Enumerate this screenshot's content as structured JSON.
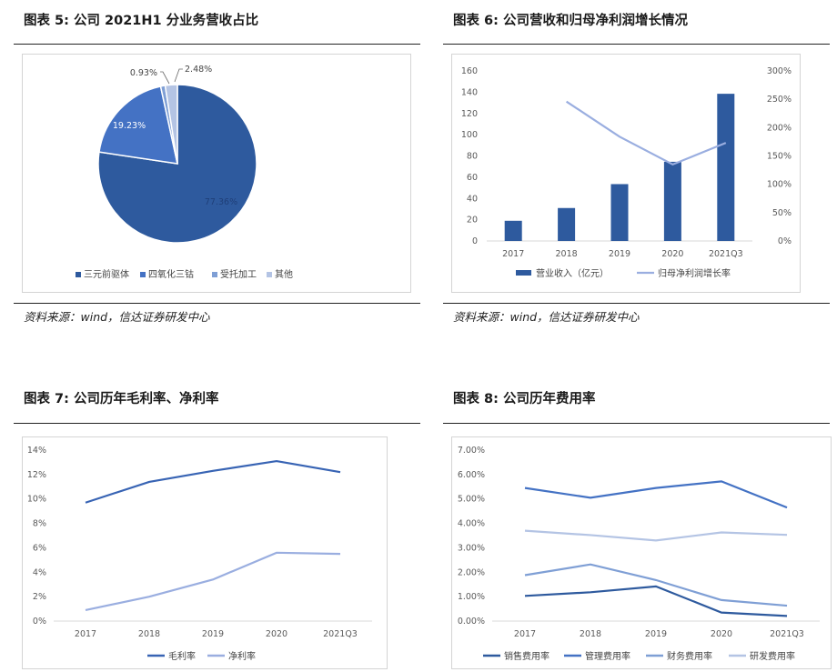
{
  "figures": [
    {
      "title": "图表 5:  公司 2021H1 分业务营收占比",
      "source": "资料来源：wind，信达证券研发中心"
    },
    {
      "title": "图表 6:  公司营收和归母净利润增长情况",
      "source": "资料来源：wind，信达证券研发中心"
    },
    {
      "title": "图表 7:  公司历年毛利率、净利率",
      "source": ""
    },
    {
      "title": "图表 8:  公司历年费用率",
      "source": ""
    }
  ],
  "chart_data": [
    {
      "type": "pie",
      "categories": [
        "三元前驱体",
        "四氧化三钴",
        "受托加工",
        "其他"
      ],
      "values": [
        77.36,
        19.23,
        0.93,
        2.48
      ],
      "data_labels": [
        "77.36%",
        "19.23%",
        "0.93%",
        "2.48%"
      ],
      "colors": [
        "#2e5a9e",
        "#4472c4",
        "#7f9fd5",
        "#b4c4e4"
      ],
      "legend_position": "bottom"
    },
    {
      "type": "bar",
      "categories": [
        "2017",
        "2018",
        "2019",
        "2020",
        "2021Q3"
      ],
      "series": [
        {
          "name": "营业收入（亿元）",
          "type": "bar",
          "axis": "left",
          "values": [
            19,
            31,
            53.5,
            74.5,
            138.5
          ],
          "color": "#2e5a9e"
        },
        {
          "name": "归母净利润增长率",
          "type": "line",
          "axis": "right",
          "values": [
            null,
            246,
            184,
            135,
            173
          ],
          "color": "#9aaee0"
        }
      ],
      "ylim": [
        0,
        160
      ],
      "yticks": [
        "160",
        "140",
        "120",
        "100",
        "80",
        "60",
        "40",
        "20",
        "0"
      ],
      "y2lim": [
        0,
        300
      ],
      "y2ticks": [
        "300%",
        "250%",
        "200%",
        "150%",
        "100%",
        "50%",
        "0%"
      ],
      "legend_position": "bottom"
    },
    {
      "type": "line",
      "categories": [
        "2017",
        "2018",
        "2019",
        "2020",
        "2021Q3"
      ],
      "series": [
        {
          "name": "毛利率",
          "values": [
            9.7,
            11.4,
            12.3,
            13.1,
            12.2
          ],
          "color": "#3864b4"
        },
        {
          "name": "净利率",
          "values": [
            0.9,
            2.0,
            3.4,
            5.6,
            5.5
          ],
          "color": "#9aaee0"
        }
      ],
      "ylim": [
        0,
        14
      ],
      "yticks": [
        "14%",
        "12%",
        "10%",
        "8%",
        "6%",
        "4%",
        "2%",
        "0%"
      ],
      "legend_position": "bottom"
    },
    {
      "type": "line",
      "categories": [
        "2017",
        "2018",
        "2019",
        "2020",
        "2021Q3"
      ],
      "series": [
        {
          "name": "销售费用率",
          "values": [
            1.03,
            1.18,
            1.42,
            0.35,
            0.21
          ],
          "color": "#2e5a9e"
        },
        {
          "name": "管理费用率",
          "values": [
            5.45,
            5.05,
            5.45,
            5.72,
            4.65
          ],
          "color": "#4472c4"
        },
        {
          "name": "财务费用率",
          "values": [
            1.88,
            2.32,
            1.68,
            0.86,
            0.63
          ],
          "color": "#7f9fd5"
        },
        {
          "name": "研发费用率",
          "values": [
            3.7,
            3.52,
            3.3,
            3.63,
            3.53
          ],
          "color": "#b4c4e4"
        }
      ],
      "ylim": [
        0,
        7
      ],
      "yticks": [
        "7.00%",
        "6.00%",
        "5.00%",
        "4.00%",
        "3.00%",
        "2.00%",
        "1.00%",
        "0.00%"
      ],
      "legend_position": "bottom"
    }
  ]
}
